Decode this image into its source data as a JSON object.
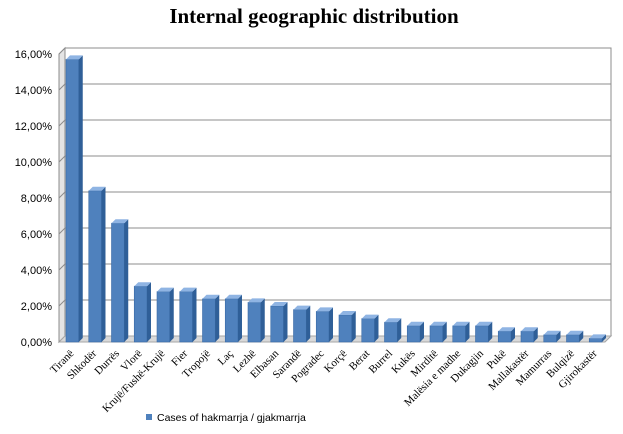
{
  "chart_data": {
    "type": "bar",
    "title": "Internal geographic distribution",
    "xlabel": "",
    "ylabel": "",
    "ylim": [
      0,
      16
    ],
    "y_tick_step": 2,
    "y_tick_format": "percent_comma_2dp",
    "grid": true,
    "legend_position": "bottom-left",
    "categories": [
      "Tiranë",
      "Shkodër",
      "Durrës",
      "Vlorë",
      "Krujë/Fushë-Krujë",
      "Fier",
      "Tropojë",
      "Laç",
      "Lezhë",
      "Elbasan",
      "Sarandë",
      "Pogradec",
      "Korçë",
      "Berat",
      "Burrel",
      "Kukës",
      "Mirditë",
      "Malësia e madhe",
      "Dukagjin",
      "Pukë",
      "Mallakastër",
      "Mamurras",
      "Bulqizë",
      "Gjirokastër"
    ],
    "series": [
      {
        "name": "Cases of hakmarrja / gjakmarrja",
        "color": "#4f81bd",
        "values": [
          15.7,
          8.4,
          6.6,
          3.1,
          2.8,
          2.8,
          2.4,
          2.4,
          2.2,
          2.0,
          1.8,
          1.7,
          1.5,
          1.3,
          1.1,
          0.9,
          0.9,
          0.9,
          0.9,
          0.6,
          0.6,
          0.4,
          0.4,
          0.2
        ]
      }
    ]
  }
}
